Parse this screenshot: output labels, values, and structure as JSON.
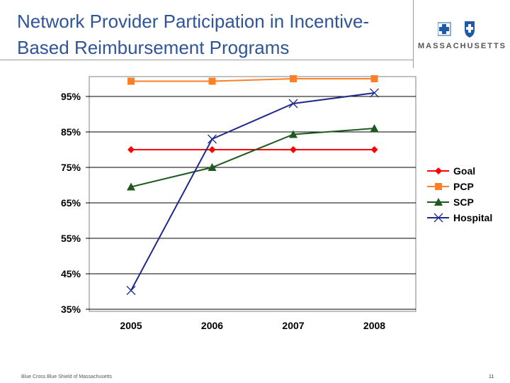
{
  "slide": {
    "title": "Network Provider Participation in Incentive-Based Reimbursement Programs",
    "logo_text": "MASSACHUSETTS",
    "footer_left": "Blue Cross Blue Shield of Massachusetts",
    "page_number": "11"
  },
  "chart_data": {
    "type": "line",
    "title": "",
    "xlabel": "",
    "ylabel": "",
    "categories": [
      "2005",
      "2006",
      "2007",
      "2008"
    ],
    "ylim": [
      35,
      100
    ],
    "yticks": [
      35,
      45,
      55,
      65,
      75,
      85,
      95
    ],
    "ytick_labels": [
      "35%",
      "45%",
      "55%",
      "65%",
      "75%",
      "85%",
      "95%"
    ],
    "grid": true,
    "legend_position": "right",
    "series": [
      {
        "name": "Goal",
        "color": "#ff0000",
        "marker": "diamond",
        "values": [
          80,
          80,
          80,
          80
        ]
      },
      {
        "name": "PCP",
        "color": "#ff7f27",
        "marker": "square",
        "values": [
          99.3,
          99.3,
          100,
          100
        ]
      },
      {
        "name": "SCP",
        "color": "#1e5a1e",
        "marker": "triangle",
        "values": [
          69.5,
          75,
          84.3,
          86
        ]
      },
      {
        "name": "Hospital",
        "color": "#1f2a8c",
        "marker": "x",
        "values": [
          40.3,
          83,
          93,
          96
        ]
      }
    ]
  }
}
